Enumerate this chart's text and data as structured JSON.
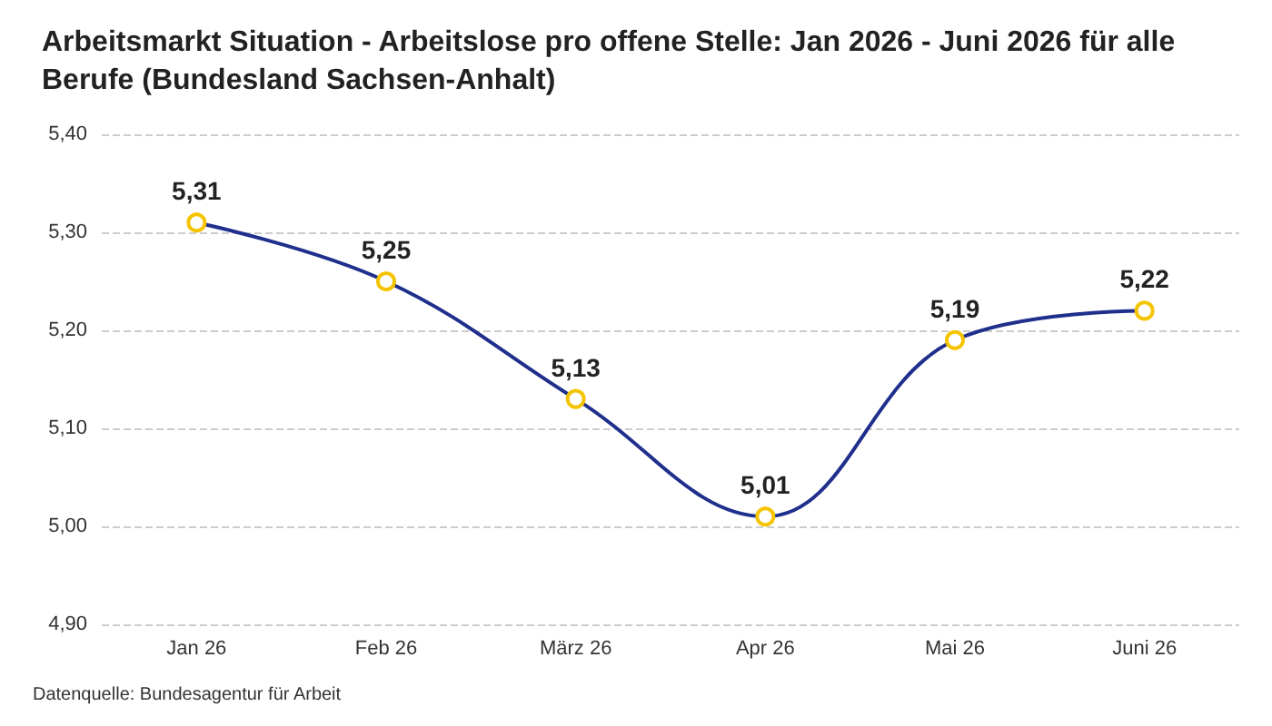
{
  "chart_data": {
    "type": "line",
    "title": "Arbeitsmarkt Situation - Arbeitslose pro offene Stelle: Jan 2026 - Juni 2026 für alle Berufe (Bundesland Sachsen-Anhalt)",
    "categories": [
      "Jan 26",
      "Feb 26",
      "März 26",
      "Apr 26",
      "Mai 26",
      "Juni 26"
    ],
    "series": [
      {
        "color": "#1f2f8c",
        "values": [
          5.31,
          5.25,
          5.13,
          5.01,
          5.19,
          5.22
        ],
        "value_labels": [
          "5,31",
          "5,25",
          "5,13",
          "5,01",
          "5,19",
          "5,22"
        ]
      }
    ],
    "ylim": [
      4.9,
      5.4
    ],
    "yticks": [
      {
        "value": 4.9,
        "label": "4,90"
      },
      {
        "value": 5.0,
        "label": "5,00"
      },
      {
        "value": 5.1,
        "label": "5,10"
      },
      {
        "value": 5.2,
        "label": "5,20"
      },
      {
        "value": 5.3,
        "label": "5,30"
      },
      {
        "value": 5.4,
        "label": "5,40"
      }
    ],
    "grid": "y",
    "marker": "circle",
    "annotations": [
      "Datenquelle: Bundesagentur für Arbeit"
    ]
  }
}
